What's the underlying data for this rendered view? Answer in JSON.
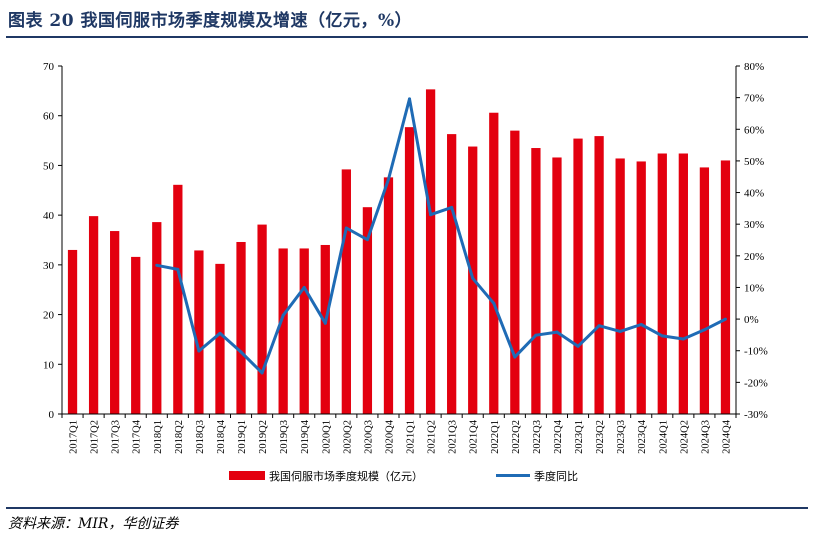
{
  "header": {
    "title": "图表 20    我国伺服市场季度规模及增速（亿元，%）"
  },
  "footer": {
    "source": "资料来源：MIR，华创证券"
  },
  "chart_data": {
    "type": "bar",
    "categories": [
      "2017Q1",
      "2017Q2",
      "2017Q3",
      "2017Q4",
      "2018Q1",
      "2018Q2",
      "2018Q3",
      "2018Q4",
      "2019Q1",
      "2019Q2",
      "2019Q3",
      "2019Q4",
      "2020Q1",
      "2020Q2",
      "2020Q3",
      "2020Q4",
      "2021Q1",
      "2021Q2",
      "2021Q3",
      "2021Q4",
      "2022Q1",
      "2022Q2",
      "2022Q3",
      "2022Q4",
      "2023Q1",
      "2023Q2",
      "2023Q3",
      "2023Q4",
      "2024Q1",
      "2024Q2",
      "2024Q3",
      "2024Q4"
    ],
    "series": [
      {
        "name": "我国伺服市场季度规模（亿元）",
        "axis": "left",
        "kind": "bar",
        "color": "#e3000f",
        "values": [
          33,
          39.8,
          36.8,
          31.6,
          38.6,
          46.1,
          32.9,
          30.2,
          34.6,
          38.1,
          33.3,
          33.3,
          34,
          49.2,
          41.6,
          47.6,
          57.7,
          65.3,
          56.3,
          53.8,
          60.6,
          57,
          53.5,
          51.6,
          55.4,
          55.9,
          51.4,
          50.8,
          52.4,
          52.4,
          49.6,
          51
        ]
      },
      {
        "name": "季度同比",
        "axis": "right",
        "kind": "line",
        "color": "#1f6bb5",
        "values": [
          null,
          null,
          null,
          null,
          17,
          15.7,
          -10.1,
          -4.5,
          -10.4,
          -17,
          1.2,
          10,
          -1.3,
          28.8,
          25.1,
          44.2,
          69.6,
          33,
          35.3,
          12.9,
          5,
          -12,
          -5.1,
          -4.1,
          -8.6,
          -2.1,
          -3.9,
          -1.7,
          -5.3,
          -6.3,
          -3.4,
          0
        ]
      }
    ],
    "yleft": {
      "ylim": [
        0,
        70
      ],
      "ticks": [
        "0",
        "10",
        "20",
        "30",
        "40",
        "50",
        "60",
        "70"
      ]
    },
    "yright": {
      "ylim": [
        -30,
        80
      ],
      "ticks": [
        "-30%",
        "-20%",
        "-10%",
        "0%",
        "10%",
        "20%",
        "30%",
        "40%",
        "50%",
        "60%",
        "70%",
        "80%"
      ]
    },
    "legend": {
      "position": "bottom",
      "bar_label": "我国伺服市场季度规模（亿元）",
      "line_label": "季度同比"
    },
    "grid": false
  }
}
